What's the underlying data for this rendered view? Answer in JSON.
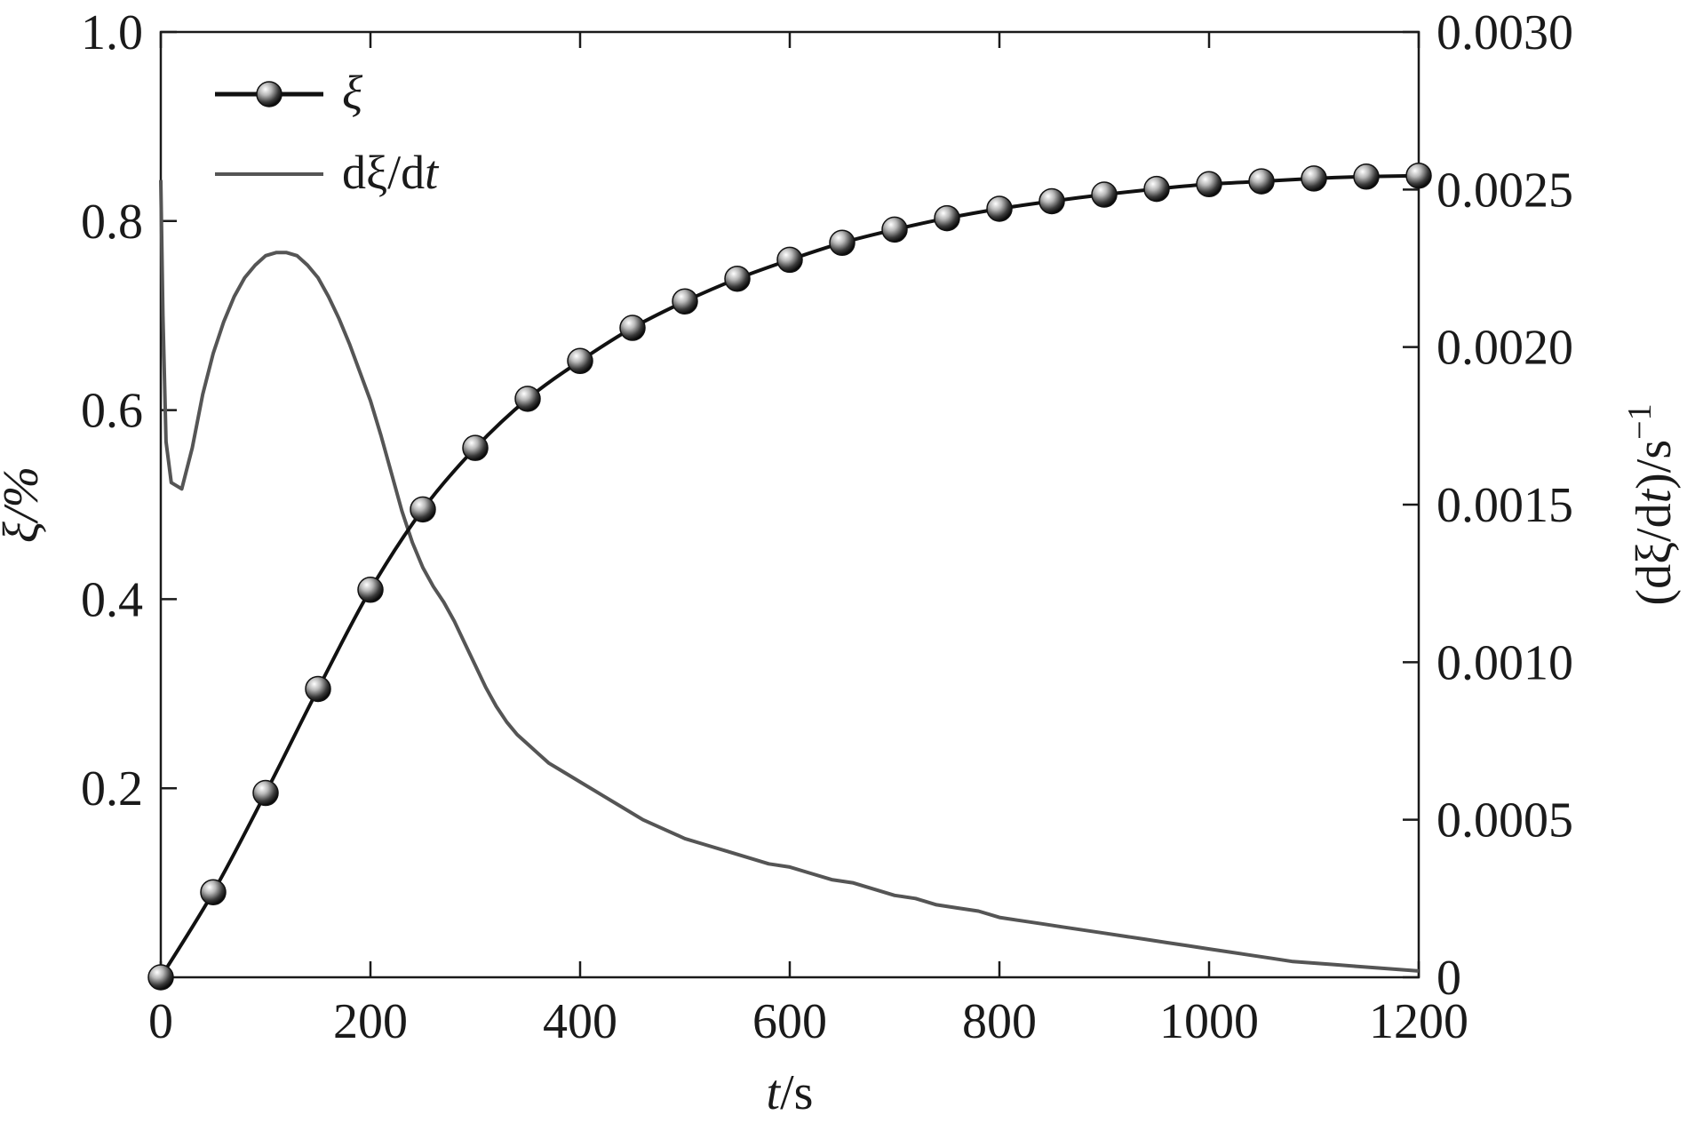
{
  "chart_data": {
    "type": "line",
    "title": "",
    "xlabel_italic": "t",
    "xlabel_rest": "/s",
    "ylabel_left": "ξ/%",
    "ylabel_right_pre": "(dξ/d",
    "ylabel_right_italic": "t",
    "ylabel_right_post": ")/s",
    "ylabel_right_exp": "−1",
    "xlim": [
      0,
      1200
    ],
    "ylim_left": [
      0,
      1.0
    ],
    "ylim_right": [
      0,
      0.003
    ],
    "x_ticks": [
      {
        "value": 0,
        "label": "0"
      },
      {
        "value": 200,
        "label": "200"
      },
      {
        "value": 400,
        "label": "400"
      },
      {
        "value": 600,
        "label": "600"
      },
      {
        "value": 800,
        "label": "800"
      },
      {
        "value": 1000,
        "label": "1000"
      },
      {
        "value": 1200,
        "label": "1200"
      }
    ],
    "y_left_ticks": [
      {
        "value": 0.2,
        "label": "0.2"
      },
      {
        "value": 0.4,
        "label": "0.4"
      },
      {
        "value": 0.6,
        "label": "0.6"
      },
      {
        "value": 0.8,
        "label": "0.8"
      },
      {
        "value": 1.0,
        "label": "1.0"
      }
    ],
    "y_right_ticks": [
      {
        "value": 0,
        "label": "0"
      },
      {
        "value": 0.0005,
        "label": "0.0005"
      },
      {
        "value": 0.001,
        "label": "0.0010"
      },
      {
        "value": 0.0015,
        "label": "0.0015"
      },
      {
        "value": 0.002,
        "label": "0.0020"
      },
      {
        "value": 0.0025,
        "label": "0.0025"
      },
      {
        "value": 0.003,
        "label": "0.0030"
      }
    ],
    "legend_position": "top-left",
    "series": [
      {
        "name": "ξ",
        "axis": "left",
        "color": "#111111",
        "marker": "sphere",
        "x": [
          0,
          50,
          100,
          150,
          200,
          250,
          300,
          350,
          400,
          450,
          500,
          550,
          600,
          650,
          700,
          750,
          800,
          850,
          900,
          950,
          1000,
          1050,
          1100,
          1150,
          1200
        ],
        "y": [
          0.0,
          0.09,
          0.195,
          0.305,
          0.41,
          0.495,
          0.56,
          0.612,
          0.652,
          0.687,
          0.715,
          0.739,
          0.759,
          0.777,
          0.791,
          0.803,
          0.813,
          0.821,
          0.828,
          0.834,
          0.839,
          0.842,
          0.845,
          0.847,
          0.848
        ]
      },
      {
        "name_pre": "dξ/d",
        "name_italic": "t",
        "axis": "right",
        "color": "#555555",
        "marker": "none",
        "x": [
          0,
          2,
          5,
          10,
          20,
          30,
          40,
          50,
          60,
          70,
          80,
          90,
          100,
          110,
          120,
          130,
          140,
          150,
          160,
          170,
          180,
          190,
          200,
          210,
          220,
          230,
          240,
          250,
          260,
          270,
          280,
          290,
          300,
          310,
          320,
          330,
          340,
          350,
          360,
          370,
          380,
          390,
          400,
          420,
          440,
          460,
          480,
          500,
          520,
          540,
          560,
          580,
          600,
          620,
          640,
          660,
          680,
          700,
          720,
          740,
          760,
          780,
          800,
          820,
          840,
          860,
          880,
          900,
          920,
          940,
          960,
          980,
          1000,
          1020,
          1040,
          1060,
          1080,
          1100,
          1120,
          1140,
          1160,
          1180,
          1200
        ],
        "y": [
          0.00253,
          0.0021,
          0.0017,
          0.00157,
          0.00155,
          0.00168,
          0.00185,
          0.00198,
          0.00208,
          0.00216,
          0.00222,
          0.00226,
          0.00229,
          0.0023,
          0.0023,
          0.00229,
          0.00226,
          0.00222,
          0.00216,
          0.00209,
          0.00201,
          0.00192,
          0.00183,
          0.00172,
          0.0016,
          0.00148,
          0.00138,
          0.0013,
          0.00124,
          0.00119,
          0.00113,
          0.00106,
          0.00099,
          0.00092,
          0.00086,
          0.00081,
          0.00077,
          0.00074,
          0.00071,
          0.00068,
          0.00066,
          0.00064,
          0.00062,
          0.00058,
          0.00054,
          0.0005,
          0.00047,
          0.00044,
          0.00042,
          0.0004,
          0.00038,
          0.00036,
          0.00035,
          0.00033,
          0.00031,
          0.0003,
          0.00028,
          0.00026,
          0.00025,
          0.00023,
          0.00022,
          0.00021,
          0.00019,
          0.00018,
          0.00017,
          0.00016,
          0.00015,
          0.00014,
          0.00013,
          0.00012,
          0.00011,
          0.0001,
          9e-05,
          8e-05,
          7e-05,
          6e-05,
          5e-05,
          4.5e-05,
          4e-05,
          3.5e-05,
          3e-05,
          2.5e-05,
          2e-05
        ]
      }
    ]
  }
}
